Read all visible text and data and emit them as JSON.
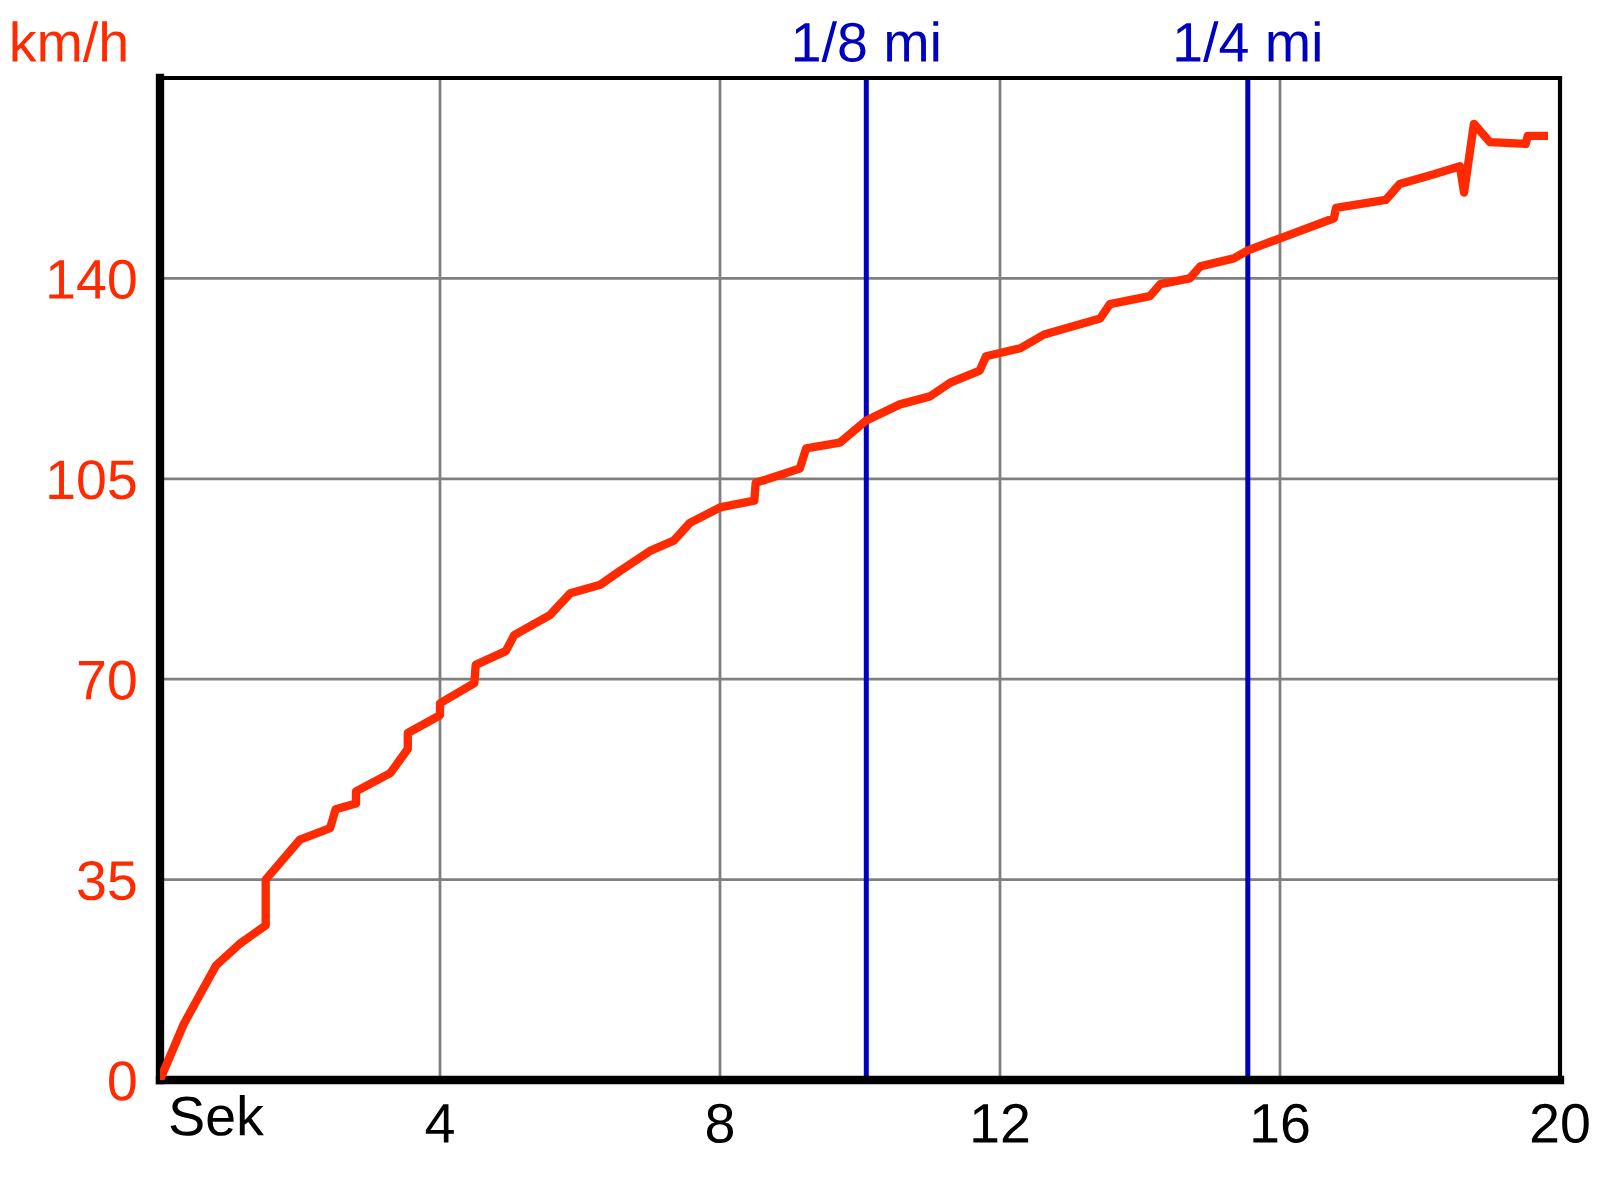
{
  "chart_data": {
    "type": "line",
    "xlabel": "Sek",
    "ylabel": "km/h",
    "x": [
      0,
      0.34,
      0.8,
      1.14,
      1.51,
      1.51,
      2.0,
      2.43,
      2.51,
      2.8,
      2.8,
      3.29,
      3.54,
      3.54,
      4.0,
      4.0,
      4.49,
      4.51,
      4.94,
      5.06,
      5.57,
      5.86,
      6.29,
      6.57,
      7.0,
      7.34,
      7.57,
      8.0,
      8.49,
      8.51,
      9.14,
      9.23,
      9.71,
      10.09,
      10.57,
      11.0,
      11.29,
      11.71,
      11.8,
      12.29,
      12.63,
      13.43,
      13.57,
      14.14,
      14.29,
      14.71,
      14.86,
      15.34,
      15.54,
      16.0,
      16.77,
      16.8,
      17.51,
      17.71,
      18.2,
      18.57,
      18.63,
      18.77,
      19.0,
      19.51,
      19.54,
      19.77
    ],
    "series": [
      {
        "color": "#ff2a00",
        "values": [
          0,
          9.8,
          20,
          23.8,
          27,
          35,
          42,
          44,
          47.3,
          48.3,
          50.4,
          53.6,
          57.8,
          60.6,
          63.7,
          65.8,
          69.3,
          72.5,
          74.9,
          77.7,
          81.2,
          85,
          86.5,
          88.9,
          92.4,
          94.2,
          97.3,
          100,
          101.2,
          104.3,
          106.8,
          110.3,
          111.3,
          115.2,
          118,
          119.4,
          121.8,
          123.9,
          126.4,
          127.8,
          130.2,
          133,
          135.5,
          136.9,
          139,
          140,
          142.1,
          143.5,
          144.9,
          147,
          150.5,
          152.3,
          153.7,
          156.5,
          158.2,
          159.6,
          155,
          167,
          163.8,
          163.5,
          164.9,
          164.9
        ]
      }
    ],
    "xlim": [
      0,
      20
    ],
    "xticks": [
      {
        "value": 0,
        "label": null
      },
      4,
      8,
      12,
      16,
      20
    ],
    "ylim": [
      0,
      175
    ],
    "yticks": [
      0,
      35,
      70,
      105,
      140
    ],
    "grid": true,
    "line_style": "solid",
    "marker": "none",
    "ref_lines": [
      {
        "axis": "x",
        "value": 10.09,
        "label": "1/8 mi",
        "color": "#0000c0"
      },
      {
        "axis": "x",
        "value": 15.54,
        "label": "1/4 mi",
        "color": "#0000c0"
      }
    ]
  }
}
